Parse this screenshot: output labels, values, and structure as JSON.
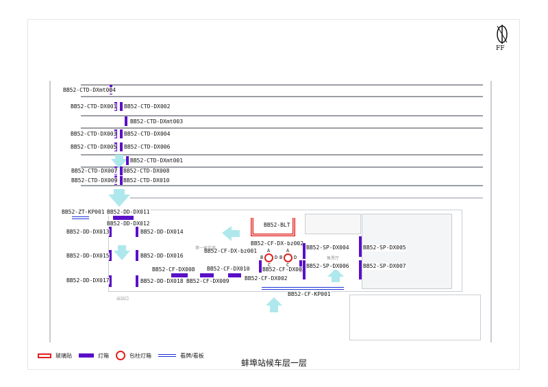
{
  "title": "蚌埠站候车层一层",
  "logo_text": "FF",
  "colors": {
    "light_box": "#5a0fc8",
    "glass_sticker": "#e0201c",
    "billboard": "#1a2fd6",
    "flow_arrow": "#aee8ec"
  },
  "legend": [
    {
      "icon": "glass-sticker-swatch",
      "label": "玻璃贴"
    },
    {
      "icon": "light-box-swatch",
      "label": "灯箱"
    },
    {
      "icon": "column-light-box-ring",
      "label": "包柱灯箱"
    },
    {
      "icon": "billboard-double-line",
      "label": "看牌/看板"
    }
  ],
  "platform_labels": [
    "BB52-CTD-DXmt004",
    "BB52-CTD-DX001",
    "BB52-CTD-DX002",
    "BB52-CTD-DXmt003",
    "BB52-CTD-DX003",
    "BB52-CTD-DX004",
    "BB52-CTD-DX005",
    "BB52-CTD-DX006",
    "BB52-CTD-DXmt001",
    "BB52-CTD-DX007",
    "BB52-CTD-DX008",
    "BB52-CTD-DX009",
    "BB52-CTD-DX010"
  ],
  "hall_labels": [
    "BB52-ZT-KP001",
    "BB52-DD-DX011",
    "BB52-DD-DX012",
    "BB52-DD-DX013",
    "BB52-DD-DX014",
    "BB52-DD-DX015",
    "BB52-DD-DX016",
    "BB52-DD-DX017",
    "BB52-DD-DX018",
    "BB52-CF-DX008",
    "BB52-CF-DX009",
    "BB52-CF-DX010",
    "BB52-CF-DX002",
    "BB52-CF-DX003",
    "BB52-BLT",
    "BB52-CF-DX-bz002",
    "BB52-CF-DX-bz001",
    "BB52-SP-DX004",
    "BB52-SP-DX005",
    "BB52-SP-DX006",
    "BB52-SP-DX007",
    "BB52-CF-KP001"
  ],
  "column_faces": [
    "A",
    "B",
    "C",
    "D"
  ],
  "room_labels": [
    "第一候车室",
    "售票厅",
    "出站口"
  ]
}
